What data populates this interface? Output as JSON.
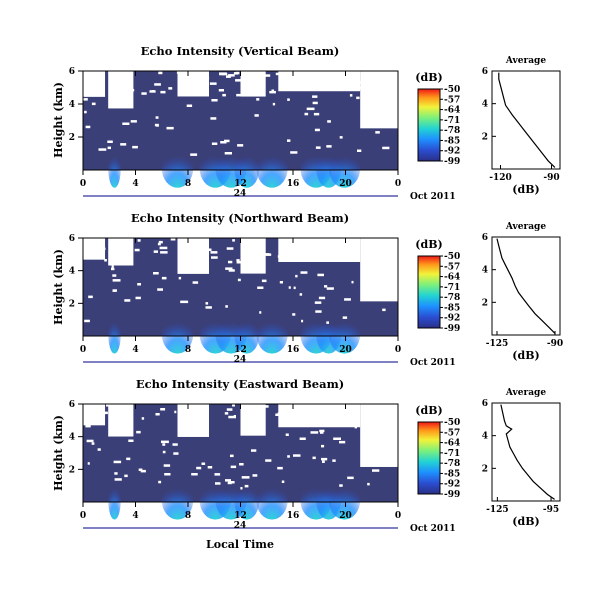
{
  "chart_data": [
    {
      "type": "heatmap",
      "title": "Echo Intensity (Vertical Beam)",
      "ylabel": "Height (km)",
      "xlabel": "",
      "x_ticks": [
        "0",
        "4",
        "8",
        "12",
        "16",
        "20",
        "0"
      ],
      "y_ticks": [
        "2",
        "4",
        "6"
      ],
      "xlim": [
        0,
        24
      ],
      "ylim": [
        0,
        6
      ],
      "date_mark": "24",
      "date_label": "Oct 2011",
      "colorbar": {
        "unit": "(dB)",
        "ticks": [
          "-50",
          "-57",
          "-64",
          "-71",
          "-78",
          "-85",
          "-92",
          "-99"
        ],
        "range": [
          -99,
          -50
        ]
      },
      "average": {
        "title": "Average",
        "xlabel": "(dB)",
        "x_ticks": [
          "-120",
          "-90"
        ],
        "y_ticks": [
          "2",
          "4",
          "6"
        ],
        "xlim": [
          -125,
          -85
        ],
        "ylim": [
          0,
          6
        ],
        "profile": [
          [
            -88,
            0.1
          ],
          [
            -92,
            0.5
          ],
          [
            -95,
            0.9
          ],
          [
            -98,
            1.3
          ],
          [
            -101,
            1.7
          ],
          [
            -104,
            2.1
          ],
          [
            -107,
            2.5
          ],
          [
            -110,
            2.9
          ],
          [
            -113,
            3.3
          ],
          [
            -115,
            3.6
          ],
          [
            -117,
            3.9
          ],
          [
            -118,
            4.3
          ],
          [
            -119,
            4.7
          ],
          [
            -120,
            5.1
          ],
          [
            -121,
            5.5
          ],
          [
            -121,
            5.9
          ]
        ]
      }
    },
    {
      "type": "heatmap",
      "title": "Echo Intensity (Northward Beam)",
      "ylabel": "Height (km)",
      "xlabel": "",
      "x_ticks": [
        "0",
        "4",
        "8",
        "12",
        "16",
        "20",
        "0"
      ],
      "y_ticks": [
        "2",
        "4",
        "6"
      ],
      "xlim": [
        0,
        24
      ],
      "ylim": [
        0,
        6
      ],
      "date_mark": "24",
      "date_label": "Oct 2011",
      "colorbar": {
        "unit": "(dB)",
        "ticks": [
          "-50",
          "-57",
          "-64",
          "-71",
          "-78",
          "-85",
          "-92",
          "-99"
        ],
        "range": [
          -99,
          -50
        ]
      },
      "average": {
        "title": "Average",
        "xlabel": "(dB)",
        "x_ticks": [
          "-125",
          "-90"
        ],
        "y_ticks": [
          "2",
          "4",
          "6"
        ],
        "xlim": [
          -128,
          -87
        ],
        "ylim": [
          0,
          6
        ],
        "profile": [
          [
            -90,
            0.1
          ],
          [
            -94,
            0.5
          ],
          [
            -98,
            0.9
          ],
          [
            -102,
            1.3
          ],
          [
            -106,
            1.8
          ],
          [
            -109,
            2.2
          ],
          [
            -112,
            2.6
          ],
          [
            -114,
            3.0
          ],
          [
            -116,
            3.5
          ],
          [
            -118,
            3.9
          ],
          [
            -120,
            4.3
          ],
          [
            -122,
            4.7
          ],
          [
            -123,
            5.1
          ],
          [
            -124,
            5.5
          ],
          [
            -125,
            5.9
          ]
        ]
      }
    },
    {
      "type": "heatmap",
      "title": "Echo Intensity (Eastward Beam)",
      "ylabel": "Height (km)",
      "xlabel": "Local Time",
      "x_ticks": [
        "0",
        "4",
        "8",
        "12",
        "16",
        "20",
        "0"
      ],
      "y_ticks": [
        "2",
        "4",
        "6"
      ],
      "xlim": [
        0,
        24
      ],
      "ylim": [
        0,
        6
      ],
      "date_mark": "24",
      "date_label": "Oct 2011",
      "colorbar": {
        "unit": "(dB)",
        "ticks": [
          "-50",
          "-57",
          "-64",
          "-71",
          "-78",
          "-85",
          "-92",
          "-99"
        ],
        "range": [
          -99,
          -50
        ]
      },
      "average": {
        "title": "Average",
        "xlabel": "(dB)",
        "x_ticks": [
          "-125",
          "-95"
        ],
        "y_ticks": [
          "2",
          "4",
          "6"
        ],
        "xlim": [
          -128,
          -90
        ],
        "ylim": [
          0,
          6
        ],
        "profile": [
          [
            -93,
            0.1
          ],
          [
            -97,
            0.4
          ],
          [
            -101,
            0.8
          ],
          [
            -105,
            1.2
          ],
          [
            -108,
            1.6
          ],
          [
            -111,
            2.0
          ],
          [
            -114,
            2.5
          ],
          [
            -116,
            2.9
          ],
          [
            -118,
            3.3
          ],
          [
            -119,
            3.7
          ],
          [
            -120,
            4.1
          ],
          [
            -117,
            4.4
          ],
          [
            -120,
            4.6
          ],
          [
            -121,
            4.9
          ],
          [
            -122,
            5.4
          ],
          [
            -123,
            5.9
          ]
        ]
      }
    }
  ],
  "colors": {
    "background": "#3b3f78",
    "gap": "#ffffff",
    "colormap": [
      "#2a2f86",
      "#2b4dd1",
      "#1e90ff",
      "#22d3d3",
      "#7cf07c",
      "#f2f23a",
      "#ff9a1a",
      "#f01818"
    ],
    "date_axis": "#00008b"
  }
}
